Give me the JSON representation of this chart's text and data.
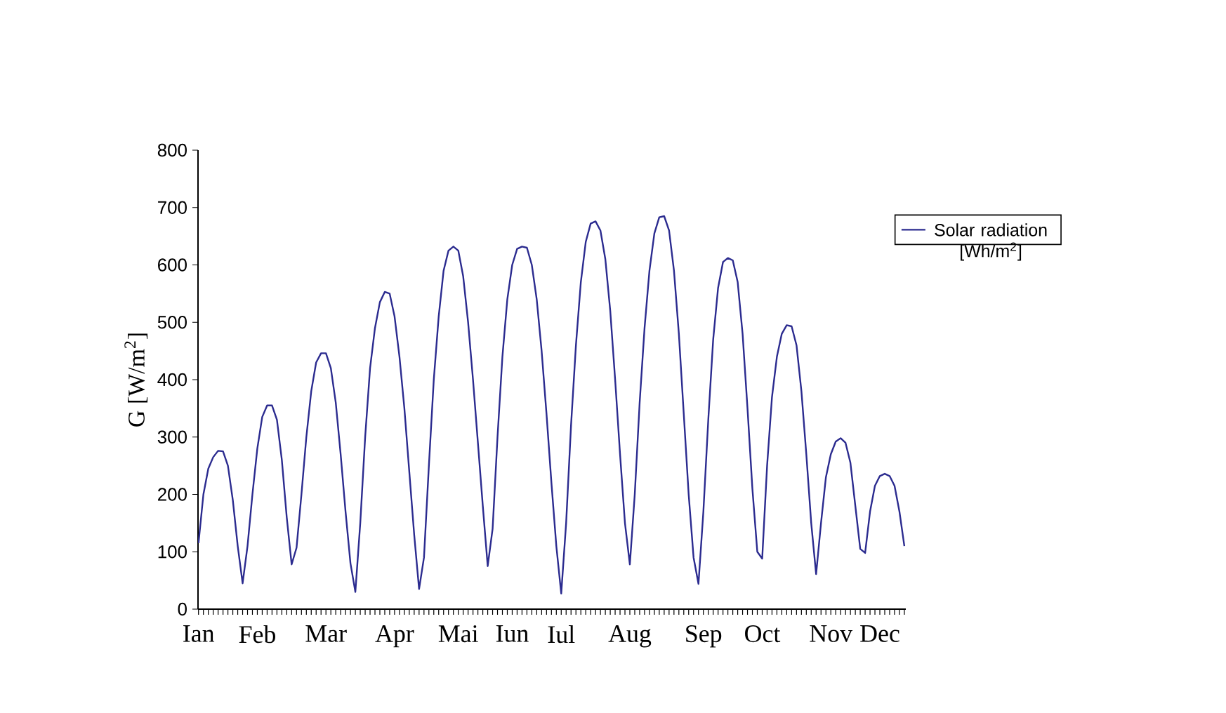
{
  "chart_data": {
    "type": "line",
    "ylabel": "G [W/m$^{2}$]",
    "legend": "right",
    "marker": "none",
    "line_style": "solid",
    "ylim": [
      0,
      800
    ],
    "yticks": [
      0,
      100,
      200,
      300,
      400,
      500,
      600,
      700,
      800
    ],
    "categories": [
      "Ian",
      null,
      null,
      null,
      null,
      null,
      null,
      null,
      null,
      null,
      null,
      null,
      "Feb",
      null,
      null,
      null,
      null,
      null,
      null,
      null,
      null,
      null,
      null,
      null,
      null,
      null,
      "Mar",
      null,
      null,
      null,
      null,
      null,
      null,
      null,
      null,
      null,
      null,
      null,
      null,
      null,
      "Apr",
      null,
      null,
      null,
      null,
      null,
      null,
      null,
      null,
      null,
      null,
      null,
      null,
      "Mai",
      null,
      null,
      null,
      null,
      null,
      null,
      null,
      null,
      null,
      null,
      "Iun",
      null,
      null,
      null,
      null,
      null,
      null,
      null,
      null,
      null,
      "Iul",
      null,
      null,
      null,
      null,
      null,
      null,
      null,
      null,
      null,
      null,
      null,
      null,
      null,
      "Aug",
      null,
      null,
      null,
      null,
      null,
      null,
      null,
      null,
      null,
      null,
      null,
      null,
      null,
      null,
      "Sep",
      null,
      null,
      null,
      null,
      null,
      null,
      null,
      null,
      null,
      null,
      null,
      "Oct",
      null,
      null,
      null,
      null,
      null,
      null,
      null,
      null,
      null,
      null,
      null,
      null,
      null,
      "Nov",
      null,
      null,
      null,
      null,
      null,
      null,
      null,
      null,
      null,
      "Dec",
      null,
      null,
      null,
      null,
      null
    ],
    "series": [
      {
        "name": "Solar radiation [Wh/m$^{2}$]",
        "color": "#2b2b8f",
        "values": [
          115,
          200,
          245,
          265,
          276,
          275,
          250,
          190,
          110,
          45,
          110,
          200,
          280,
          335,
          355,
          355,
          330,
          260,
          160,
          78,
          107,
          200,
          300,
          380,
          430,
          446,
          446,
          420,
          360,
          270,
          170,
          80,
          30,
          150,
          300,
          420,
          490,
          535,
          553,
          550,
          510,
          440,
          350,
          240,
          130,
          35,
          90,
          250,
          400,
          510,
          590,
          625,
          632,
          625,
          580,
          500,
          400,
          290,
          180,
          75,
          140,
          300,
          440,
          540,
          600,
          628,
          632,
          630,
          600,
          540,
          450,
          340,
          220,
          110,
          27,
          150,
          320,
          460,
          570,
          640,
          672,
          676,
          660,
          610,
          520,
          400,
          270,
          150,
          78,
          200,
          360,
          490,
          590,
          655,
          683,
          685,
          660,
          590,
          480,
          340,
          200,
          90,
          44,
          170,
          330,
          470,
          560,
          605,
          612,
          608,
          570,
          480,
          350,
          210,
          100,
          88,
          250,
          370,
          440,
          480,
          495,
          493,
          460,
          380,
          270,
          150,
          61,
          150,
          230,
          270,
          292,
          298,
          290,
          255,
          180,
          105,
          98,
          170,
          215,
          232,
          236,
          232,
          215,
          170,
          110
        ]
      }
    ]
  }
}
